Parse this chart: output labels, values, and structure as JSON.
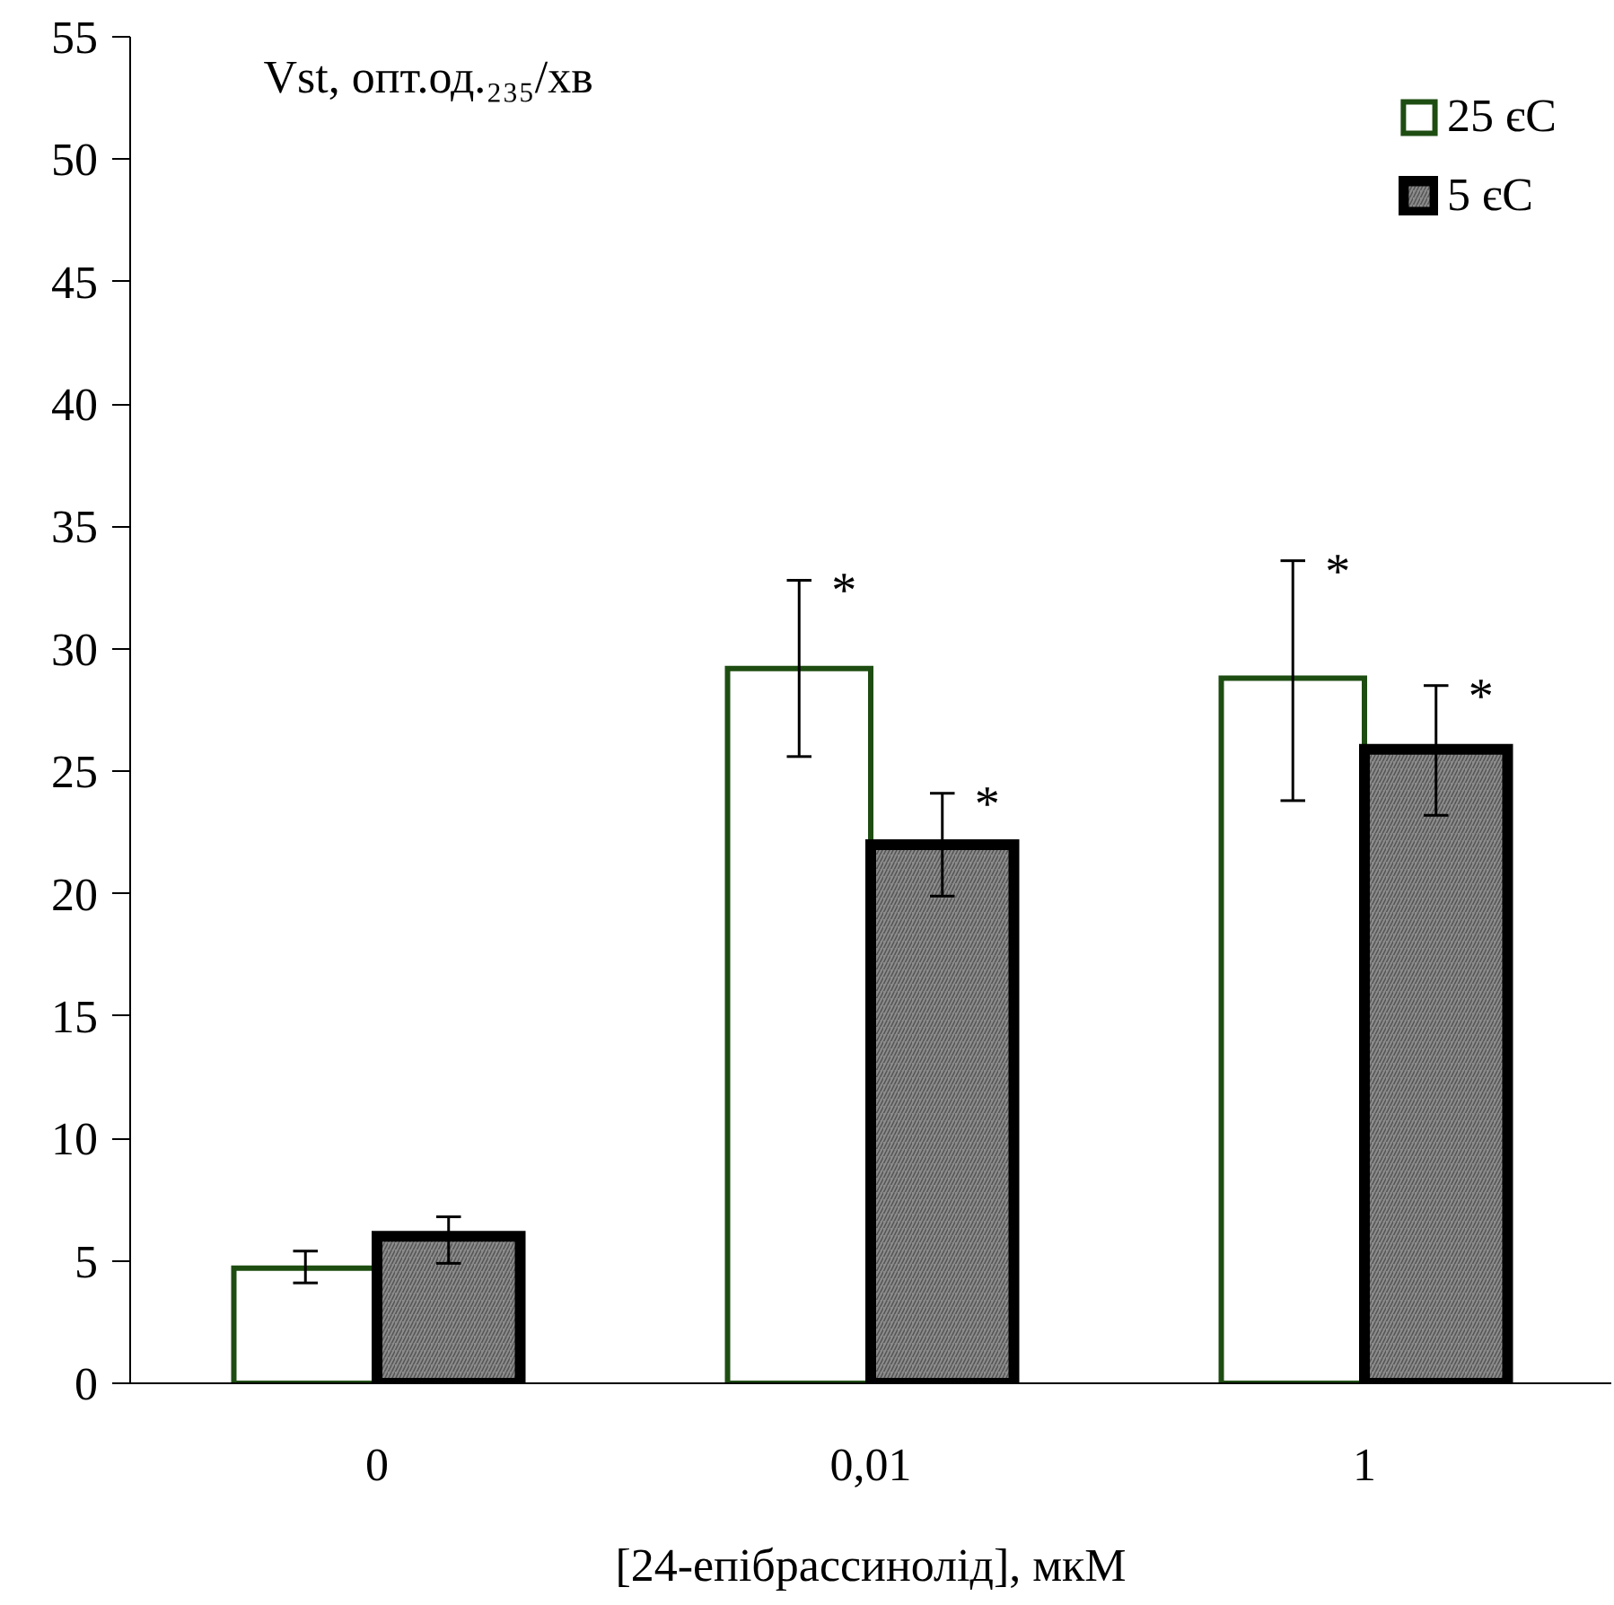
{
  "chart_data": {
    "type": "bar",
    "xlabel": "[24-епібрассинолід], мкМ",
    "ylabel": "Vst, опт.од.₂₃₅/хв",
    "categories": [
      "0",
      "0,01",
      "1"
    ],
    "series": [
      {
        "name": "25 єС",
        "color": "#ffffff",
        "values": [
          4.7,
          29.2,
          28.8
        ],
        "errors": [
          [
            4.1,
            5.4
          ],
          [
            25.6,
            32.8
          ],
          [
            23.8,
            33.6
          ]
        ]
      },
      {
        "name": "5 єС",
        "color": "#8c8c8c",
        "values": [
          6.0,
          22.0,
          25.9
        ],
        "errors": [
          [
            4.9,
            6.8
          ],
          [
            19.9,
            24.1
          ],
          [
            23.2,
            28.5
          ]
        ]
      }
    ],
    "ylim": [
      0,
      55
    ],
    "yticks": [
      0,
      5,
      10,
      15,
      20,
      25,
      30,
      35,
      40,
      45,
      50,
      55
    ],
    "annotations": [
      {
        "text": "*",
        "x": "0,01",
        "y": 29.2
      },
      {
        "text": "*",
        "x": "0,01",
        "y": 22.0
      },
      {
        "text": "*",
        "x": "1",
        "y": 28.8
      },
      {
        "text": "*",
        "x": "1",
        "y": 25.9
      }
    ],
    "grid": false,
    "legend": "top right"
  }
}
